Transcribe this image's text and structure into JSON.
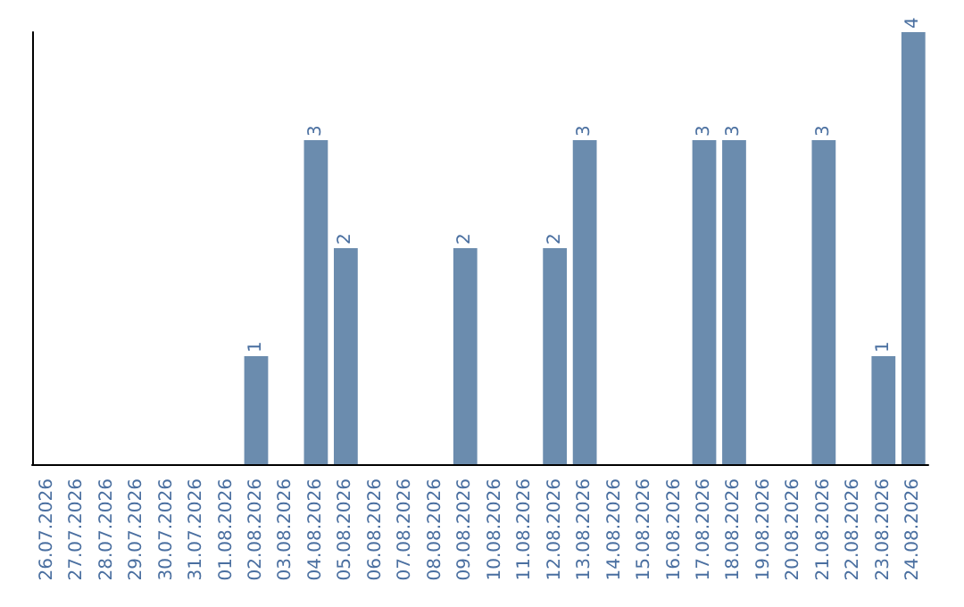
{
  "chart_data": {
    "type": "bar",
    "categories": [
      "26.07.2026",
      "27.07.2026",
      "28.07.2026",
      "29.07.2026",
      "30.07.2026",
      "31.07.2026",
      "01.08.2026",
      "02.08.2026",
      "03.08.2026",
      "04.08.2026",
      "05.08.2026",
      "06.08.2026",
      "07.08.2026",
      "08.08.2026",
      "09.08.2026",
      "10.08.2026",
      "11.08.2026",
      "12.08.2026",
      "13.08.2026",
      "14.08.2026",
      "15.08.2026",
      "16.08.2026",
      "17.08.2026",
      "18.08.2026",
      "19.08.2026",
      "20.08.2026",
      "21.08.2026",
      "22.08.2026",
      "23.08.2026",
      "24.08.2026"
    ],
    "values": [
      0,
      0,
      0,
      0,
      0,
      0,
      0,
      1,
      0,
      3,
      2,
      0,
      0,
      0,
      2,
      0,
      0,
      2,
      3,
      0,
      0,
      0,
      3,
      3,
      0,
      0,
      3,
      0,
      1,
      4
    ],
    "value_labels": [
      null,
      null,
      null,
      null,
      null,
      null,
      null,
      "1",
      null,
      "3",
      "2",
      null,
      null,
      null,
      "2",
      null,
      null,
      "2",
      "3",
      null,
      null,
      null,
      "3",
      "3",
      null,
      null,
      "3",
      null,
      "1",
      "4"
    ],
    "color": "#6b8cae",
    "tick_labels": "x"
  }
}
